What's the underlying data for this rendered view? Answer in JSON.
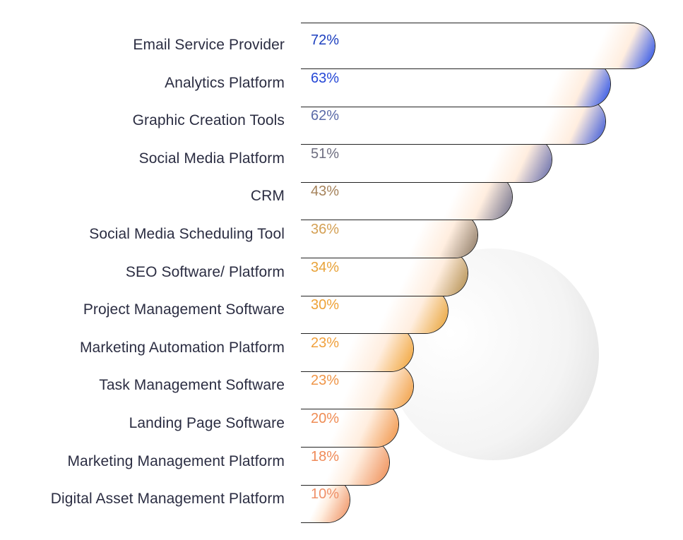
{
  "chart_data": {
    "type": "bar",
    "orientation": "horizontal",
    "title": "",
    "xlabel": "",
    "ylabel": "",
    "grid": false,
    "legend": null,
    "xlim": [
      0,
      72
    ],
    "categories": [
      "Email Service Provider",
      "Analytics Platform",
      "Graphic Creation Tools",
      "Social Media Platform",
      "CRM",
      "Social Media Scheduling Tool",
      "SEO Software/ Platform",
      "Project Management Software",
      "Marketing Automation Platform",
      "Task Management Software",
      "Landing Page Software",
      "Marketing Management Platform",
      "Digital Asset Management Platform"
    ],
    "values": [
      72,
      63,
      62,
      51,
      43,
      36,
      34,
      30,
      23,
      23,
      20,
      18,
      10
    ],
    "value_labels": [
      "72%",
      "63%",
      "62%",
      "51%",
      "43%",
      "36%",
      "34%",
      "30%",
      "23%",
      "23%",
      "20%",
      "18%",
      "10%"
    ],
    "colors": [
      "#1c3fbf",
      "#2547d6",
      "#5a6aa8",
      "#6e6e80",
      "#a5825a",
      "#d4a054",
      "#e8a33a",
      "#eea236",
      "#f0a03c",
      "#ef9548",
      "#ef8c54",
      "#ef8a58",
      "#ef9068"
    ]
  }
}
